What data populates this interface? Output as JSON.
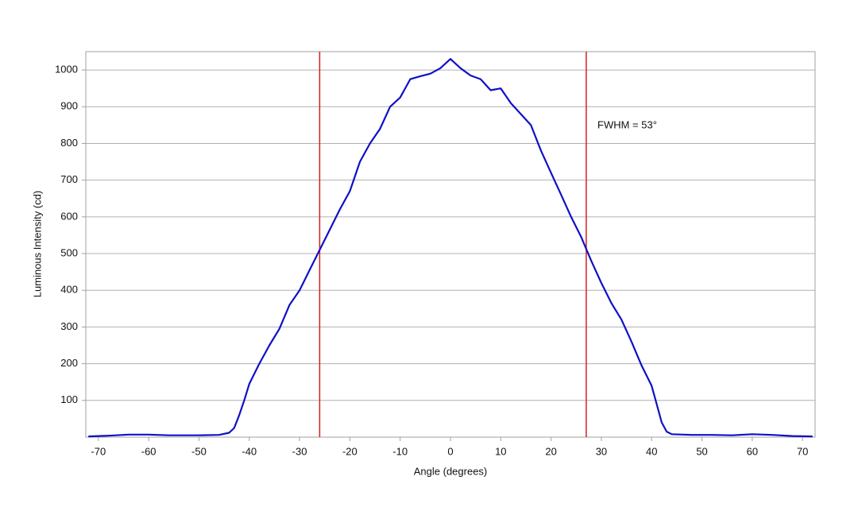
{
  "chart_data": {
    "type": "line",
    "x_label": "Angle (degrees)",
    "y_label": "Luminous Intensity (cd)",
    "annotation": "FWHM = 53°",
    "x": [
      -72,
      -68,
      -64,
      -60,
      -56,
      -50,
      -46,
      -44,
      -43,
      -42,
      -41,
      -40,
      -38,
      -36,
      -34,
      -32,
      -30,
      -28,
      -26,
      -24,
      -22,
      -20,
      -18,
      -16,
      -14,
      -12,
      -10,
      -8,
      -6,
      -4,
      -2,
      0,
      2,
      4,
      6,
      8,
      10,
      12,
      14,
      16,
      18,
      20,
      22,
      24,
      26,
      28,
      30,
      32,
      34,
      36,
      38,
      40,
      41,
      42,
      43,
      44,
      48,
      52,
      56,
      60,
      64,
      68,
      72
    ],
    "series": [
      {
        "color": "#1010c8",
        "values": [
          2,
          4,
          7,
          7,
          5,
          5,
          6,
          12,
          25,
          60,
          100,
          145,
          200,
          250,
          295,
          360,
          400,
          455,
          510,
          565,
          620,
          670,
          750,
          800,
          840,
          900,
          925,
          975,
          983,
          990,
          1005,
          1030,
          1005,
          985,
          975,
          945,
          950,
          910,
          880,
          850,
          780,
          720,
          660,
          600,
          545,
          480,
          420,
          365,
          320,
          260,
          195,
          140,
          90,
          40,
          15,
          8,
          6,
          6,
          5,
          8,
          6,
          3,
          2
        ]
      }
    ],
    "vlines": [
      {
        "value": -26,
        "color": "#d42020"
      },
      {
        "value": 27,
        "color": "#d42020"
      }
    ],
    "xlim": [
      -72.5,
      72.5
    ],
    "ylim": [
      0,
      1050
    ],
    "xticks": [
      -70,
      -60,
      -50,
      -40,
      -30,
      -20,
      -10,
      0,
      10,
      20,
      30,
      40,
      50,
      60,
      70
    ],
    "yticks": [
      100,
      200,
      300,
      400,
      500,
      600,
      700,
      800,
      900,
      1000
    ],
    "grid": true
  }
}
